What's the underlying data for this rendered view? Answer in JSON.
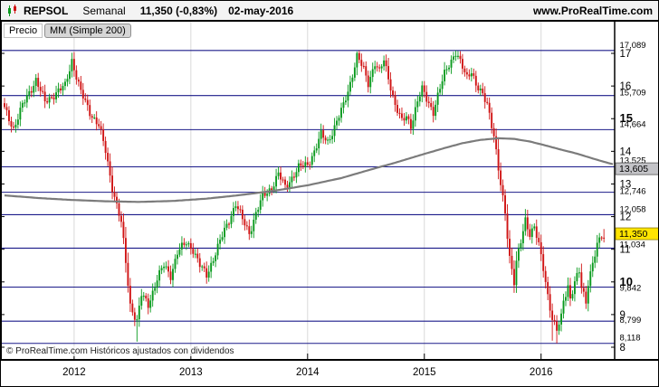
{
  "header": {
    "symbol": "REPSOL",
    "timeframe": "Semanal",
    "quote": "11,350 (-0,83%)",
    "date": "02-may-2016",
    "website": "www.ProRealTime.com"
  },
  "panel": {
    "price_tab": "Precio",
    "indicator": "MM (Simple 200)",
    "copyright": "© ProRealTime.com Históricos ajustados con dividendos"
  },
  "y_axis": {
    "ticks": [
      17,
      16,
      15,
      14,
      13,
      12,
      11,
      10,
      9,
      8
    ],
    "bold_ticks": [
      15,
      10
    ]
  },
  "price_boxes": {
    "last": {
      "label": "11,350",
      "value": 11.35,
      "bg": "#ffe400"
    },
    "ma": {
      "label": "13,605",
      "value": 13.605,
      "bg": "#c4c4c8"
    }
  },
  "colors": {
    "up": "#0a9a1e",
    "down": "#d01414",
    "ma_line": "#7b7b7b",
    "level_line": "#1b1b8a",
    "year_grid": "#d9d9d9"
  },
  "chart_data": {
    "type": "candlestick",
    "title": "REPSOL Semanal",
    "timeframe": "weekly",
    "ylim": [
      7.64,
      17.97
    ],
    "weeks": 268,
    "last_close": 11.35,
    "change_pct": -0.83,
    "ma_period": 200,
    "ma_last": 13.605,
    "all_time_high": 17.089,
    "all_time_low": 8.118,
    "years": [
      {
        "label": "2012",
        "week": 31
      },
      {
        "label": "2013",
        "week": 83
      },
      {
        "label": "2014",
        "week": 135
      },
      {
        "label": "2015",
        "week": 187
      },
      {
        "label": "2016",
        "week": 239
      }
    ],
    "levels": [
      {
        "price": 17.089,
        "label": "17,089"
      },
      {
        "price": 15.709,
        "label": "15,709"
      },
      {
        "price": 14.664,
        "label": "14,664"
      },
      {
        "price": 13.525,
        "label": "13,525"
      },
      {
        "price": 12.746,
        "label": "12,746"
      },
      {
        "price": 12.058,
        "label": "12,058"
      },
      {
        "price": 11.034,
        "label": "11,034"
      },
      {
        "price": 9.842,
        "label": "9,842"
      },
      {
        "price": 8.799,
        "label": "8,799"
      },
      {
        "price": 8.118,
        "label": "8,118"
      }
    ],
    "close_anchors": [
      [
        0,
        15.3
      ],
      [
        4,
        14.7
      ],
      [
        8,
        15.4
      ],
      [
        14,
        16.2
      ],
      [
        18,
        15.5
      ],
      [
        23,
        15.8
      ],
      [
        27,
        16.0
      ],
      [
        30,
        16.8
      ],
      [
        34,
        15.8
      ],
      [
        38,
        15.2
      ],
      [
        42,
        14.8
      ],
      [
        45,
        14.0
      ],
      [
        48,
        12.9
      ],
      [
        52,
        11.8
      ],
      [
        54,
        10.6
      ],
      [
        56,
        9.3
      ],
      [
        59,
        8.8
      ],
      [
        61,
        9.6
      ],
      [
        64,
        9.3
      ],
      [
        68,
        10.1
      ],
      [
        71,
        10.5
      ],
      [
        74,
        10.2
      ],
      [
        77,
        10.9
      ],
      [
        81,
        11.2
      ],
      [
        84,
        11.0
      ],
      [
        87,
        10.5
      ],
      [
        90,
        10.2
      ],
      [
        94,
        10.9
      ],
      [
        97,
        11.4
      ],
      [
        100,
        11.9
      ],
      [
        103,
        12.4
      ],
      [
        106,
        11.9
      ],
      [
        109,
        11.5
      ],
      [
        112,
        12.1
      ],
      [
        115,
        12.6
      ],
      [
        119,
        12.9
      ],
      [
        122,
        13.3
      ],
      [
        125,
        12.9
      ],
      [
        128,
        13.2
      ],
      [
        131,
        13.5
      ],
      [
        135,
        13.6
      ],
      [
        138,
        14.0
      ],
      [
        141,
        14.5
      ],
      [
        144,
        14.3
      ],
      [
        148,
        14.9
      ],
      [
        151,
        15.4
      ],
      [
        154,
        16.1
      ],
      [
        157,
        16.9
      ],
      [
        160,
        16.5
      ],
      [
        162,
        16.1
      ],
      [
        165,
        16.7
      ],
      [
        167,
        16.4
      ],
      [
        169,
        16.8
      ],
      [
        172,
        16.0
      ],
      [
        174,
        15.4
      ],
      [
        177,
        14.9
      ],
      [
        179,
        15.1
      ],
      [
        181,
        14.8
      ],
      [
        184,
        15.5
      ],
      [
        186,
        15.9
      ],
      [
        189,
        15.5
      ],
      [
        191,
        15.2
      ],
      [
        194,
        15.9
      ],
      [
        196,
        16.4
      ],
      [
        198,
        16.7
      ],
      [
        201,
        17.0
      ],
      [
        203,
        16.7
      ],
      [
        206,
        16.3
      ],
      [
        208,
        16.5
      ],
      [
        210,
        16.0
      ],
      [
        213,
        15.7
      ],
      [
        215,
        15.5
      ],
      [
        218,
        14.5
      ],
      [
        220,
        13.4
      ],
      [
        223,
        12.1
      ],
      [
        225,
        10.8
      ],
      [
        227,
        10.0
      ],
      [
        228,
        10.6
      ],
      [
        230,
        11.2
      ],
      [
        232,
        11.9
      ],
      [
        234,
        11.5
      ],
      [
        236,
        11.7
      ],
      [
        238,
        11.1
      ],
      [
        240,
        10.4
      ],
      [
        242,
        9.6
      ],
      [
        244,
        8.9
      ],
      [
        246,
        8.5
      ],
      [
        248,
        8.9
      ],
      [
        249,
        9.4
      ],
      [
        251,
        9.9
      ],
      [
        252,
        9.5
      ],
      [
        254,
        10.0
      ],
      [
        256,
        10.3
      ],
      [
        257,
        9.8
      ],
      [
        259,
        9.4
      ],
      [
        260,
        10.0
      ],
      [
        262,
        10.6
      ],
      [
        264,
        11.1
      ],
      [
        266,
        11.4
      ],
      [
        267,
        11.35
      ]
    ],
    "ma_anchors": [
      [
        0,
        12.65
      ],
      [
        15,
        12.57
      ],
      [
        30,
        12.51
      ],
      [
        45,
        12.47
      ],
      [
        60,
        12.45
      ],
      [
        75,
        12.48
      ],
      [
        90,
        12.55
      ],
      [
        105,
        12.66
      ],
      [
        120,
        12.79
      ],
      [
        135,
        12.96
      ],
      [
        150,
        13.18
      ],
      [
        162,
        13.42
      ],
      [
        174,
        13.65
      ],
      [
        186,
        13.9
      ],
      [
        196,
        14.1
      ],
      [
        204,
        14.25
      ],
      [
        212,
        14.35
      ],
      [
        220,
        14.4
      ],
      [
        227,
        14.38
      ],
      [
        234,
        14.3
      ],
      [
        241,
        14.18
      ],
      [
        248,
        14.05
      ],
      [
        255,
        13.93
      ],
      [
        262,
        13.78
      ],
      [
        267,
        13.68
      ],
      [
        271,
        13.605
      ]
    ],
    "forced_extremes": [
      {
        "week": 30,
        "high": 17.02
      },
      {
        "week": 59,
        "low": 8.17
      },
      {
        "week": 157,
        "high": 17.06
      },
      {
        "week": 201,
        "high": 17.089
      },
      {
        "week": 244,
        "low": 8.2
      },
      {
        "week": 246,
        "low": 8.118
      },
      {
        "week": 267,
        "close": 11.35,
        "high": 11.62
      }
    ]
  }
}
